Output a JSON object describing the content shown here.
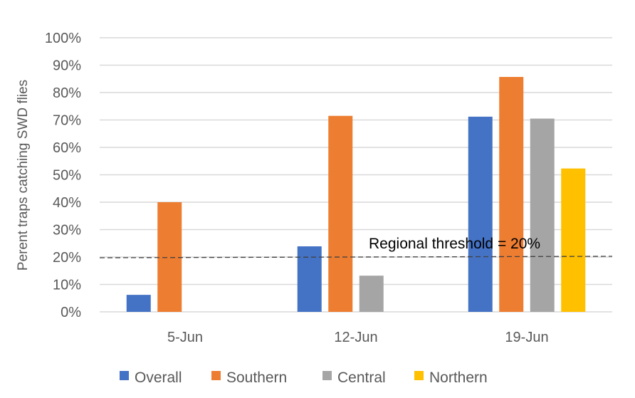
{
  "chart_data": {
    "type": "bar",
    "categories": [
      "5-Jun",
      "12-Jun",
      "19-Jun"
    ],
    "series": [
      {
        "name": "Overall",
        "color": "#4472C4",
        "values": [
          6.2,
          23.9,
          71.2
        ]
      },
      {
        "name": "Southern",
        "color": "#ED7D31",
        "values": [
          40.0,
          71.5,
          85.7
        ]
      },
      {
        "name": "Central",
        "color": "#A5A5A5",
        "values": [
          null,
          13.2,
          70.5
        ]
      },
      {
        "name": "Northern",
        "color": "#FFC000",
        "values": [
          null,
          null,
          52.3
        ]
      }
    ],
    "ylabel": "Perent traps catching SWD flies",
    "xlabel": "",
    "ylim": [
      0,
      100
    ],
    "yticks": [
      "0%",
      "10%",
      "20%",
      "30%",
      "40%",
      "50%",
      "60%",
      "70%",
      "80%",
      "90%",
      "100%"
    ],
    "grid": true,
    "legend": "bottom",
    "annotation": {
      "text": "Regional threshold = 20%",
      "value": 20
    }
  }
}
